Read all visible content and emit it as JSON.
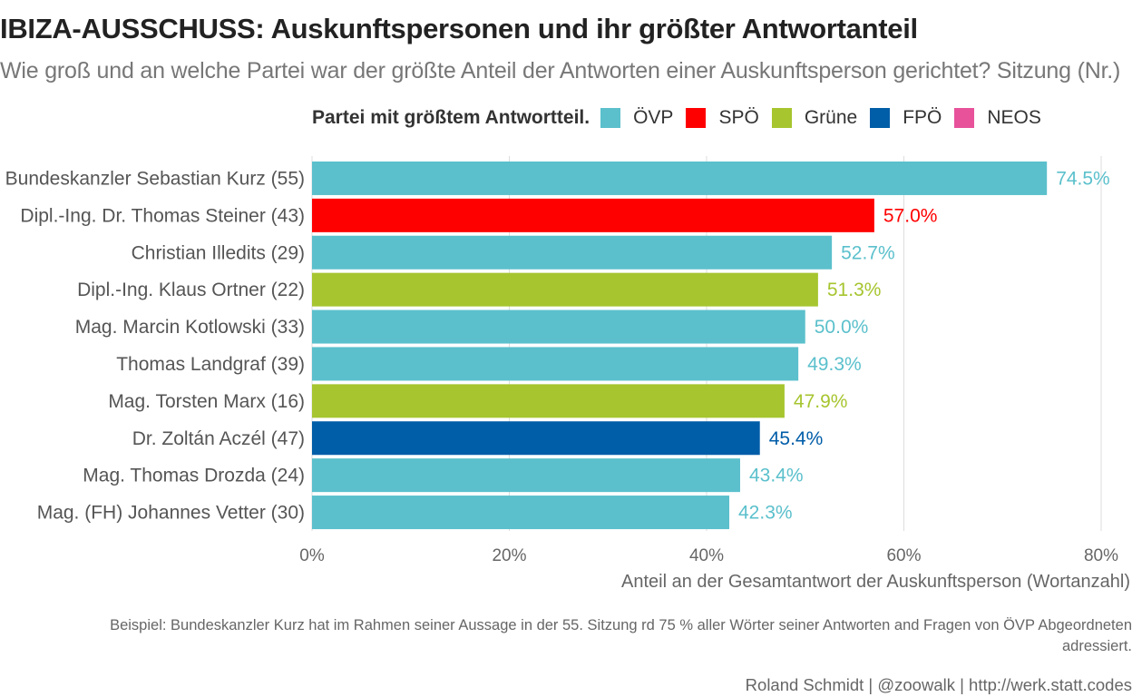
{
  "title": "IBIZA-AUSSCHUSS: Auskunftspersonen und ihr größter Antwortanteil",
  "subtitle": "Wie groß und an welche Partei war der größte Anteil der Antworten einer Auskunftsperson gerichtet? Sitzung (Nr.)",
  "legend": {
    "title": "Partei mit größtem Antwortteil.",
    "items": [
      {
        "label": "ÖVP",
        "color": "#5bc0cc"
      },
      {
        "label": "SPÖ",
        "color": "#ff0000"
      },
      {
        "label": "Grüne",
        "color": "#a6c52f"
      },
      {
        "label": "FPÖ",
        "color": "#005da8"
      },
      {
        "label": "NEOS",
        "color": "#e8529b"
      }
    ]
  },
  "chart_data": {
    "type": "bar",
    "orientation": "horizontal",
    "categories": [
      "Bundeskanzler Sebastian Kurz (55)",
      "Dipl.-Ing. Dr. Thomas Steiner (43)",
      "Christian Illedits (29)",
      "Dipl.-Ing. Klaus Ortner (22)",
      "Mag. Marcin Kotlowski (33)",
      "Thomas Landgraf (39)",
      "Mag. Torsten Marx (16)",
      "Dr. Zoltán Aczél (47)",
      "Mag. Thomas Drozda (24)",
      "Mag. (FH) Johannes Vetter (30)"
    ],
    "values": [
      74.5,
      57.0,
      52.7,
      51.3,
      50.0,
      49.3,
      47.9,
      45.4,
      43.4,
      42.3
    ],
    "value_labels": [
      "74.5%",
      "57.0%",
      "52.7%",
      "51.3%",
      "50.0%",
      "49.3%",
      "47.9%",
      "45.4%",
      "43.4%",
      "42.3%"
    ],
    "parties": [
      "ÖVP",
      "SPÖ",
      "ÖVP",
      "Grüne",
      "ÖVP",
      "ÖVP",
      "Grüne",
      "FPÖ",
      "ÖVP",
      "ÖVP"
    ],
    "xlabel": "Anteil an der Gesamtantwort der Auskunftsperson (Wortanzahl)",
    "xlim": [
      0,
      80
    ],
    "xticks": [
      0,
      20,
      40,
      60,
      80
    ],
    "xtick_labels": [
      "0%",
      "20%",
      "40%",
      "60%",
      "80%"
    ],
    "grid": true,
    "legend_position": "top"
  },
  "caption": {
    "line1": "Beispiel: Bundeskanzler Kurz hat im Rahmen seiner Aussage in der 55. Sitzung rd 75 % aller Wörter seiner Antworten and Fragen von ÖVP Abgeordneten",
    "line2": "adressiert."
  },
  "source": "Roland Schmidt | @zoowalk | http://werk.statt.codes"
}
